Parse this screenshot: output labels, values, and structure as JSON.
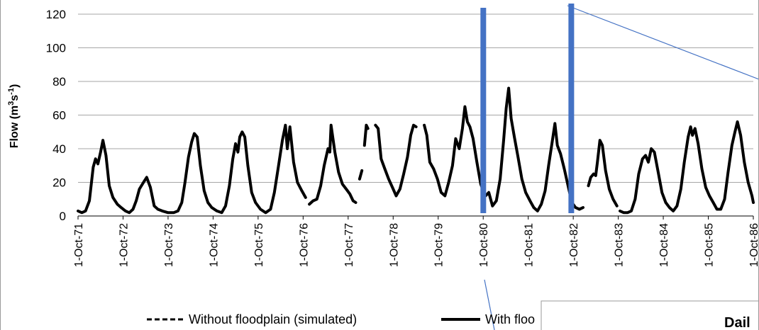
{
  "chart_data": {
    "type": "line",
    "ylabel": "Flow (m³s⁻¹)",
    "ylabel_parts": {
      "pre": "Flow (m",
      "sup1": "3",
      "mid": "s",
      "sup2": "-1",
      "post": ")"
    },
    "ylim": [
      0,
      120
    ],
    "y_ticks": [
      "0",
      "20",
      "40",
      "60",
      "80",
      "100",
      "120"
    ],
    "x_tick_labels": [
      "1-Oct-71",
      "1-Oct-72",
      "1-Oct-73",
      "1-Oct-74",
      "1-Oct-75",
      "1-Oct-76",
      "1-Oct-77",
      "1-Oct-78",
      "1-Oct-79",
      "1-Oct-80",
      "1-Oct-81",
      "1-Oct-82",
      "1-Oct-83",
      "1-Oct-84",
      "1-Oct-85",
      "1-Oct-86"
    ],
    "xlim": [
      "1971-10-01",
      "1986-10-01"
    ],
    "grid": "horizontal",
    "legend_position": "bottom",
    "series": [
      {
        "name": "Without floodplain (simulated)",
        "style": "dashed",
        "color": "#000000",
        "points": []
      },
      {
        "name": "With floo",
        "style": "solid",
        "color": "#000000",
        "segments": [
          [
            [
              "1971-10-01",
              3
            ],
            [
              "1971-11-01",
              2
            ],
            [
              "1971-12-01",
              3
            ],
            [
              "1972-01-01",
              9
            ],
            [
              "1972-02-01",
              29
            ],
            [
              "1972-02-20",
              34
            ],
            [
              "1972-03-10",
              31
            ],
            [
              "1972-04-01",
              38
            ],
            [
              "1972-04-20",
              45
            ],
            [
              "1972-05-15",
              36
            ],
            [
              "1972-06-10",
              18
            ],
            [
              "1972-07-10",
              11
            ],
            [
              "1972-08-15",
              7
            ],
            [
              "1972-09-15",
              5
            ],
            [
              "1972-10-20",
              3
            ],
            [
              "1972-11-20",
              2
            ],
            [
              "1972-12-20",
              4
            ],
            [
              "1973-01-15",
              9
            ],
            [
              "1973-02-10",
              16
            ],
            [
              "1973-03-15",
              20
            ],
            [
              "1973-04-10",
              23
            ],
            [
              "1973-05-10",
              17
            ],
            [
              "1973-06-10",
              6
            ],
            [
              "1973-07-10",
              4
            ],
            [
              "1973-08-15",
              3
            ],
            [
              "1973-10-01",
              2
            ],
            [
              "1973-11-15",
              2
            ],
            [
              "1973-12-20",
              3
            ],
            [
              "1974-01-20",
              8
            ],
            [
              "1974-02-15",
              20
            ],
            [
              "1974-03-15",
              35
            ],
            [
              "1974-04-10",
              44
            ],
            [
              "1974-05-01",
              49
            ],
            [
              "1974-05-25",
              47
            ],
            [
              "1974-06-20",
              30
            ],
            [
              "1974-07-20",
              15
            ],
            [
              "1974-08-20",
              8
            ],
            [
              "1974-09-20",
              5
            ],
            [
              "1974-11-01",
              3
            ],
            [
              "1974-12-10",
              2
            ],
            [
              "1975-01-10",
              6
            ],
            [
              "1975-02-10",
              18
            ],
            [
              "1975-03-10",
              34
            ],
            [
              "1975-04-01",
              43
            ],
            [
              "1975-04-20",
              38
            ],
            [
              "1975-05-05",
              47
            ],
            [
              "1975-05-25",
              50
            ],
            [
              "1975-06-15",
              47
            ],
            [
              "1975-07-10",
              30
            ],
            [
              "1975-08-10",
              14
            ],
            [
              "1975-09-10",
              8
            ],
            [
              "1975-10-20",
              4
            ],
            [
              "1975-12-01",
              2
            ],
            [
              "1976-01-10",
              4
            ],
            [
              "1976-02-10",
              14
            ],
            [
              "1976-03-15",
              30
            ],
            [
              "1976-04-15",
              45
            ],
            [
              "1976-05-10",
              54
            ],
            [
              "1976-05-25",
              40
            ],
            [
              "1976-06-15",
              53
            ],
            [
              "1976-07-15",
              32
            ],
            [
              "1976-08-15",
              20
            ],
            [
              "1976-09-20",
              15
            ],
            [
              "1976-10-20",
              11
            ]
          ],
          [
            [
              "1976-11-20",
              7
            ],
            [
              "1976-12-20",
              9
            ],
            [
              "1977-01-20",
              10
            ],
            [
              "1977-02-20",
              18
            ],
            [
              "1977-03-20",
              30
            ],
            [
              "1977-04-20",
              40
            ],
            [
              "1977-05-05",
              38
            ],
            [
              "1977-05-15",
              54
            ],
            [
              "1977-06-15",
              38
            ],
            [
              "1977-07-15",
              26
            ],
            [
              "1977-08-15",
              19
            ],
            [
              "1977-09-15",
              16
            ],
            [
              "1977-10-15",
              13
            ],
            [
              "1977-11-10",
              9
            ],
            [
              "1977-12-01",
              8
            ]
          ],
          [
            [
              "1978-01-01",
              22
            ],
            [
              "1978-01-20",
              27
            ]
          ],
          [
            [
              "1978-02-10",
              42
            ],
            [
              "1978-02-25",
              54
            ],
            [
              "1978-03-10",
              52
            ]
          ],
          [
            [
              "1978-05-10",
              54
            ],
            [
              "1978-06-01",
              52
            ],
            [
              "1978-06-25",
              34
            ],
            [
              "1978-07-25",
              28
            ],
            [
              "1978-08-25",
              22
            ],
            [
              "1978-09-25",
              17
            ],
            [
              "1978-10-25",
              12
            ],
            [
              "1978-11-25",
              16
            ],
            [
              "1978-12-25",
              25
            ],
            [
              "1979-01-25",
              35
            ],
            [
              "1979-02-20",
              48
            ],
            [
              "1979-03-15",
              54
            ],
            [
              "1979-04-05",
              53
            ]
          ],
          [
            [
              "1979-06-10",
              54
            ],
            [
              "1979-07-01",
              48
            ],
            [
              "1979-07-25",
              32
            ],
            [
              "1979-08-25",
              28
            ],
            [
              "1979-09-25",
              22
            ],
            [
              "1979-10-25",
              14
            ],
            [
              "1979-11-25",
              12
            ],
            [
              "1979-12-25",
              20
            ],
            [
              "1980-01-25",
              30
            ],
            [
              "1980-02-20",
              46
            ],
            [
              "1980-03-20",
              40
            ],
            [
              "1980-04-15",
              52
            ],
            [
              "1980-05-05",
              65
            ],
            [
              "1980-05-25",
              56
            ],
            [
              "1980-06-15",
              53
            ],
            [
              "1980-07-10",
              46
            ],
            [
              "1980-08-10",
              32
            ],
            [
              "1980-09-10",
              19
            ],
            [
              "1980-10-01",
              15
            ],
            [
              "1980-10-20",
              12
            ],
            [
              "1980-11-15",
              14
            ],
            [
              "1980-12-15",
              6
            ],
            [
              "1981-01-15",
              9
            ],
            [
              "1981-02-15",
              22
            ],
            [
              "1981-03-15",
              45
            ],
            [
              "1981-04-05",
              64
            ],
            [
              "1981-04-25",
              76
            ],
            [
              "1981-05-15",
              58
            ],
            [
              "1981-06-10",
              47
            ],
            [
              "1981-07-10",
              35
            ],
            [
              "1981-08-10",
              22
            ],
            [
              "1981-09-10",
              14
            ],
            [
              "1981-10-15",
              9
            ],
            [
              "1981-11-15",
              5
            ],
            [
              "1981-12-15",
              3
            ],
            [
              "1982-01-15",
              7
            ],
            [
              "1982-02-15",
              15
            ],
            [
              "1982-03-15",
              30
            ],
            [
              "1982-04-15",
              45
            ],
            [
              "1982-05-05",
              55
            ],
            [
              "1982-05-25",
              42
            ],
            [
              "1982-06-20",
              37
            ],
            [
              "1982-07-20",
              28
            ],
            [
              "1982-08-20",
              18
            ],
            [
              "1982-09-20",
              8
            ],
            [
              "1982-10-20",
              5
            ],
            [
              "1982-11-20",
              4
            ],
            [
              "1982-12-20",
              5
            ]
          ],
          [
            [
              "1983-02-01",
              18
            ],
            [
              "1983-02-20",
              23
            ],
            [
              "1983-03-15",
              25
            ],
            [
              "1983-04-01",
              24
            ],
            [
              "1983-04-15",
              32
            ],
            [
              "1983-05-05",
              45
            ],
            [
              "1983-05-25",
              42
            ],
            [
              "1983-06-20",
              27
            ],
            [
              "1983-07-20",
              16
            ],
            [
              "1983-08-20",
              10
            ],
            [
              "1983-09-20",
              6
            ]
          ],
          [
            [
              "1983-10-15",
              3
            ],
            [
              "1983-11-15",
              2
            ],
            [
              "1983-12-15",
              2
            ],
            [
              "1984-01-15",
              3
            ],
            [
              "1984-02-15",
              10
            ],
            [
              "1984-03-15",
              25
            ],
            [
              "1984-04-15",
              34
            ],
            [
              "1984-05-10",
              36
            ],
            [
              "1984-06-01",
              32
            ],
            [
              "1984-06-25",
              40
            ],
            [
              "1984-07-20",
              38
            ],
            [
              "1984-08-20",
              26
            ],
            [
              "1984-09-20",
              14
            ],
            [
              "1984-10-20",
              8
            ],
            [
              "1984-11-20",
              5
            ],
            [
              "1984-12-20",
              3
            ],
            [
              "1985-01-20",
              6
            ],
            [
              "1985-02-20",
              16
            ],
            [
              "1985-03-20",
              32
            ],
            [
              "1985-04-20",
              47
            ],
            [
              "1985-05-10",
              53
            ],
            [
              "1985-05-25",
              48
            ],
            [
              "1985-06-15",
              52
            ],
            [
              "1985-07-10",
              43
            ],
            [
              "1985-08-10",
              28
            ],
            [
              "1985-09-10",
              17
            ],
            [
              "1985-10-10",
              12
            ],
            [
              "1985-11-10",
              8
            ],
            [
              "1985-12-10",
              4
            ],
            [
              "1986-01-10",
              4
            ],
            [
              "1986-02-10",
              10
            ],
            [
              "1986-03-10",
              26
            ],
            [
              "1986-04-10",
              42
            ],
            [
              "1986-05-05",
              50
            ],
            [
              "1986-05-25",
              56
            ],
            [
              "1986-06-20",
              48
            ],
            [
              "1986-07-20",
              32
            ],
            [
              "1986-08-20",
              20
            ],
            [
              "1986-09-20",
              12
            ],
            [
              "1986-10-01",
              8
            ]
          ]
        ]
      }
    ],
    "markers": [
      "1980-10-01",
      "1982-09-15"
    ],
    "marker_color": "#4472C4"
  },
  "inset_title": "Dail"
}
